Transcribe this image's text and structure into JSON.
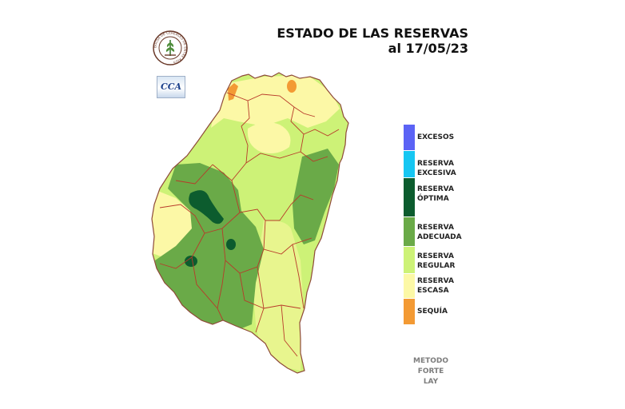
{
  "title": {
    "line1": "ESTADO DE LAS RESERVAS",
    "line2": "al 17/05/23"
  },
  "logos": {
    "bolsa": {
      "ring_text": "BOLSA DE CEREALES DE ENTRE RIOS",
      "icon": "wheat-seal-icon"
    },
    "cca": {
      "text": "CCA"
    }
  },
  "legend": [
    {
      "label": "EXCESOS",
      "color": "#5b63f5"
    },
    {
      "label": "RESERVA\nEXCESIVA",
      "color": "#16c6f2"
    },
    {
      "label": "RESERVA\nÓPTIMA",
      "color": "#0c5c2e"
    },
    {
      "label": "RESERVA\nADECUADA",
      "color": "#6aaa48"
    },
    {
      "label": "RESERVA\nREGULAR",
      "color": "#cdf277"
    },
    {
      "label": "RESERVA\nESCASA",
      "color": "#fcf8a6"
    },
    {
      "label": "SEQUÍA",
      "color": "#f39a34"
    }
  ],
  "method": {
    "line1": "METODO",
    "line2": "FORTE LAY"
  },
  "colors": {
    "border": "#b83a2a",
    "outline": "#8e4a38"
  }
}
